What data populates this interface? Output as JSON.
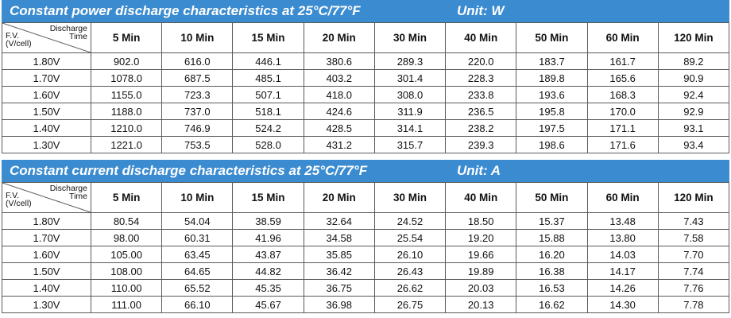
{
  "power": {
    "title": "Constant power discharge characteristics at 25°C/77°F",
    "unit": "Unit: W",
    "corner": {
      "fv_line1": "F.V.",
      "fv_line2": "(V/cell)",
      "dt_line1": "Discharge",
      "dt_line2": "Time"
    },
    "headers": [
      "5 Min",
      "10 Min",
      "15 Min",
      "20 Min",
      "30 Min",
      "40 Min",
      "50 Min",
      "60 Min",
      "120 Min"
    ],
    "rows": [
      {
        "fv": "1.80V",
        "values": [
          "902.0",
          "616.0",
          "446.1",
          "380.6",
          "289.3",
          "220.0",
          "183.7",
          "161.7",
          "89.2"
        ]
      },
      {
        "fv": "1.70V",
        "values": [
          "1078.0",
          "687.5",
          "485.1",
          "403.2",
          "301.4",
          "228.3",
          "189.8",
          "165.6",
          "90.9"
        ]
      },
      {
        "fv": "1.60V",
        "values": [
          "1155.0",
          "723.3",
          "507.1",
          "418.0",
          "308.0",
          "233.8",
          "193.6",
          "168.3",
          "92.4"
        ]
      },
      {
        "fv": "1.50V",
        "values": [
          "1188.0",
          "737.0",
          "518.1",
          "424.6",
          "311.9",
          "236.5",
          "195.8",
          "170.0",
          "92.9"
        ]
      },
      {
        "fv": "1.40V",
        "values": [
          "1210.0",
          "746.9",
          "524.2",
          "428.5",
          "314.1",
          "238.2",
          "197.5",
          "171.1",
          "93.1"
        ]
      },
      {
        "fv": "1.30V",
        "values": [
          "1221.0",
          "753.5",
          "528.0",
          "431.2",
          "315.7",
          "239.3",
          "198.6",
          "171.6",
          "93.4"
        ]
      }
    ]
  },
  "current": {
    "title": "Constant current discharge characteristics at 25°C/77°F",
    "unit": "Unit: A",
    "corner": {
      "fv_line1": "F.V.",
      "fv_line2": "(V/cell)",
      "dt_line1": "Discharge",
      "dt_line2": "Time"
    },
    "headers": [
      "5 Min",
      "10 Min",
      "15 Min",
      "20 Min",
      "30 Min",
      "40 Min",
      "50 Min",
      "60 Min",
      "120 Min"
    ],
    "rows": [
      {
        "fv": "1.80V",
        "values": [
          "80.54",
          "54.04",
          "38.59",
          "32.64",
          "24.52",
          "18.50",
          "15.37",
          "13.48",
          "7.43"
        ]
      },
      {
        "fv": "1.70V",
        "values": [
          "98.00",
          "60.31",
          "41.96",
          "34.58",
          "25.54",
          "19.20",
          "15.88",
          "13.80",
          "7.58"
        ]
      },
      {
        "fv": "1.60V",
        "values": [
          "105.00",
          "63.45",
          "43.87",
          "35.85",
          "26.10",
          "19.66",
          "16.20",
          "14.03",
          "7.70"
        ]
      },
      {
        "fv": "1.50V",
        "values": [
          "108.00",
          "64.65",
          "44.82",
          "36.42",
          "26.43",
          "19.89",
          "16.38",
          "14.17",
          "7.74"
        ]
      },
      {
        "fv": "1.40V",
        "values": [
          "110.00",
          "65.52",
          "45.35",
          "36.75",
          "26.62",
          "20.03",
          "16.53",
          "14.26",
          "7.76"
        ]
      },
      {
        "fv": "1.30V",
        "values": [
          "111.00",
          "66.10",
          "45.67",
          "36.98",
          "26.75",
          "20.13",
          "16.62",
          "14.30",
          "7.78"
        ]
      }
    ]
  },
  "colors": {
    "banner": "#3b8bd0",
    "border": "#5a5a5a",
    "text": "#111111"
  }
}
